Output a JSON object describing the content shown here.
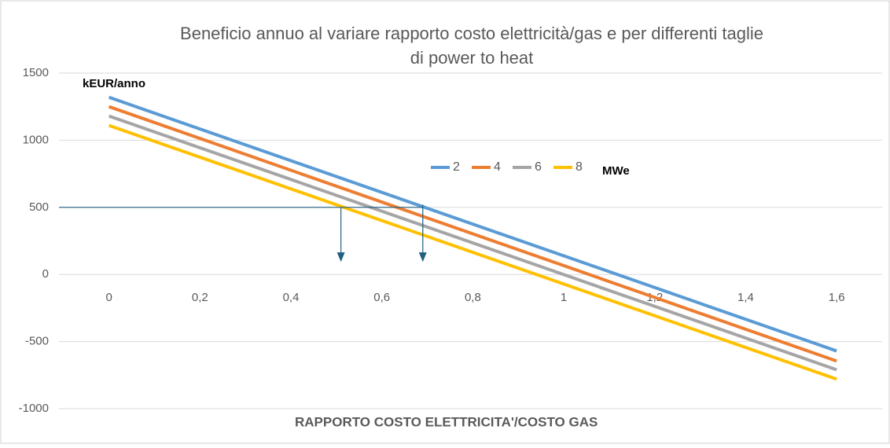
{
  "chart_data": {
    "type": "line",
    "title": [
      "Beneficio annuo al variare rapporto costo elettricità/gas e per differenti taglie",
      "di power to heat"
    ],
    "y_unit_label": "kEUR/anno",
    "legend_unit_label": "MWe",
    "x_label": "RAPPORTO COSTO ELETTRICITA'/COSTO GAS",
    "x": [
      0,
      1.6
    ],
    "series": [
      {
        "name": "2",
        "color": "#5b9bd5",
        "values": [
          1320,
          -570
        ]
      },
      {
        "name": "4",
        "color": "#ed7d31",
        "values": [
          1250,
          -645
        ]
      },
      {
        "name": "6",
        "color": "#a5a5a5",
        "values": [
          1180,
          -710
        ]
      },
      {
        "name": "8",
        "color": "#ffc000",
        "values": [
          1110,
          -780
        ]
      }
    ],
    "xlim": [
      -0.11,
      1.7
    ],
    "xticks": [
      0,
      {
        "value": 0.2,
        "label": "0,2"
      },
      {
        "value": 0.4,
        "label": "0,4"
      },
      {
        "value": 0.6,
        "label": "0,6"
      },
      {
        "value": 0.8,
        "label": "0,8"
      },
      1,
      {
        "value": 1.2,
        "label": "1,2"
      },
      {
        "value": 1.4,
        "label": "1,4"
      },
      {
        "value": 1.6,
        "label": "1,6"
      }
    ],
    "ylim": [
      -1000,
      1500
    ],
    "yticks": [
      -1000,
      -500,
      0,
      500,
      1000,
      1500
    ],
    "grid": true,
    "reference_line": {
      "y": 500,
      "x_end": 0.69,
      "color": "#1f5f7f"
    },
    "arrows": [
      {
        "x": 0.51,
        "from": 500,
        "to": 30
      },
      {
        "x": 0.69,
        "from": 520,
        "to": 30
      }
    ]
  }
}
